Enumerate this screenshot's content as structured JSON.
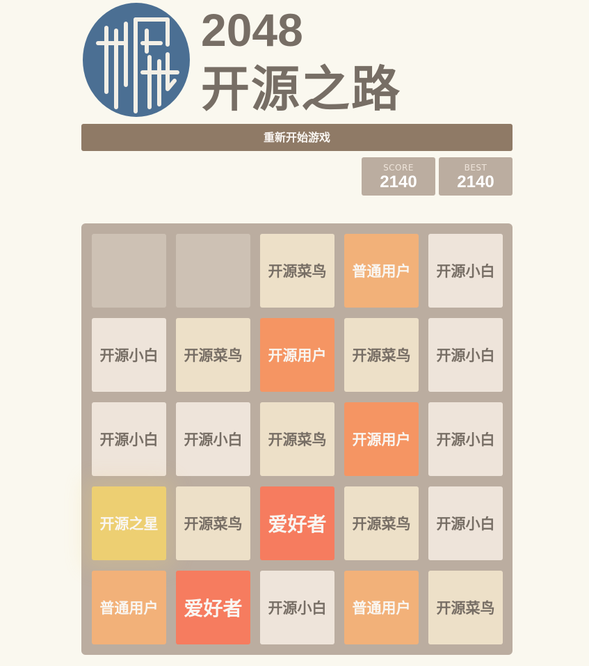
{
  "header": {
    "title": "2048",
    "subtitle": "开源之路",
    "logo_icon": "seal-logo-icon"
  },
  "restart_label": "重新开始游戏",
  "scores": {
    "score_label": "SCORE",
    "score_value": "2140",
    "best_label": "BEST",
    "best_value": "2140"
  },
  "colors": {
    "background": "#faf8ef",
    "board": "#bbada0",
    "empty_cell": "#cdc1b4",
    "button": "#8f7a66",
    "logo_blue": "#4b6f93"
  },
  "tile_styles": {
    "开源小白": {
      "bg": "#eee4da",
      "fg": "#776e65",
      "size": 21
    },
    "开源菜鸟": {
      "bg": "#ede0c8",
      "fg": "#776e65",
      "size": 21
    },
    "普通用户": {
      "bg": "#f2b179",
      "fg": "#f9f6f2",
      "size": 21
    },
    "开源用户": {
      "bg": "#f59563",
      "fg": "#f9f6f2",
      "size": 21
    },
    "爱好者": {
      "bg": "#f67c5f",
      "fg": "#f9f6f2",
      "size": 28
    },
    "开源之星": {
      "bg": "#edcf72",
      "fg": "#f9f6f2",
      "size": 21
    }
  },
  "grid": [
    [
      "",
      "",
      "开源菜鸟",
      "普通用户",
      "开源小白"
    ],
    [
      "开源小白",
      "开源菜鸟",
      "开源用户",
      "开源菜鸟",
      "开源小白"
    ],
    [
      "开源小白",
      "开源小白",
      "开源菜鸟",
      "开源用户",
      "开源小白"
    ],
    [
      "开源之星",
      "开源菜鸟",
      "爱好者",
      "开源菜鸟",
      "开源小白"
    ],
    [
      "普通用户",
      "爱好者",
      "开源小白",
      "普通用户",
      "开源菜鸟"
    ]
  ]
}
